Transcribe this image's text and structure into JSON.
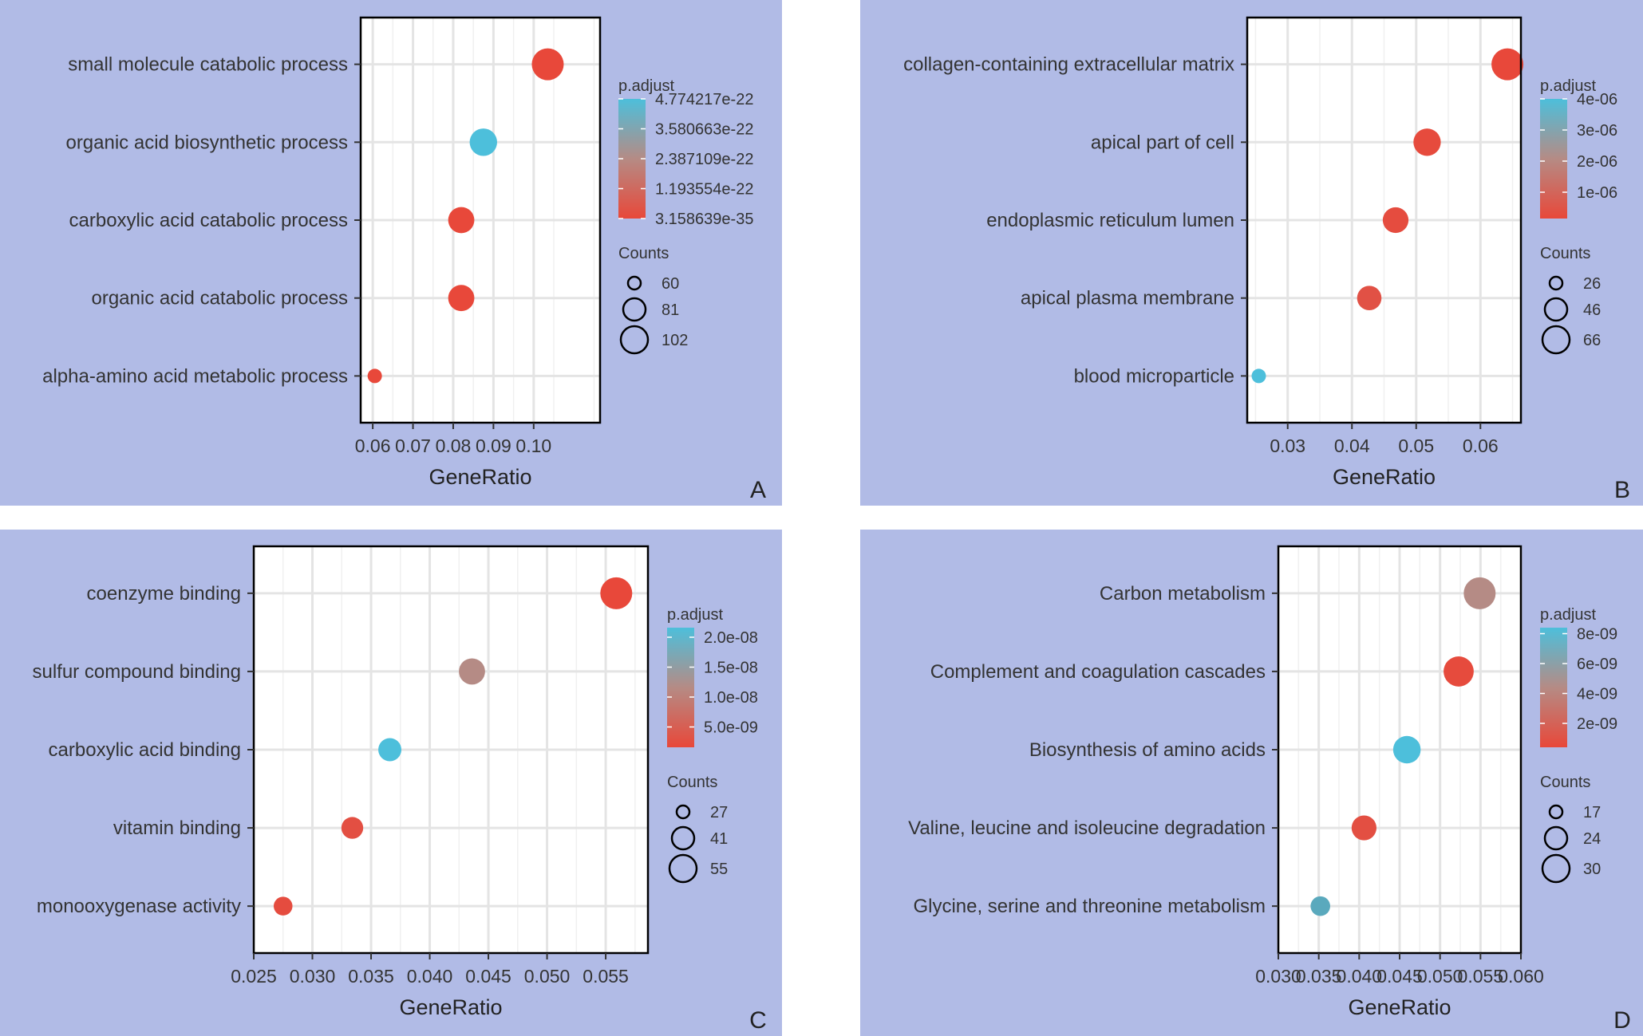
{
  "chart_data": [
    {
      "type": "scatter",
      "panel": "A",
      "xlabel": "GeneRatio",
      "xlim": [
        0.057,
        0.1165
      ],
      "xticks": [
        0.06,
        0.07,
        0.08,
        0.09,
        0.1
      ],
      "xtick_labels": [
        "0.06",
        "0.07",
        "0.08",
        "0.09",
        "0.10"
      ],
      "xgrid_minor": [
        0.065,
        0.075,
        0.085,
        0.095,
        0.105,
        0.115
      ],
      "grid": true,
      "color_low": "#e8483a",
      "color_high": "#4dbfdb",
      "color_legend": {
        "title": "p.adjust",
        "labels": [
          "4.774217e-22",
          "3.580663e-22",
          "2.387109e-22",
          "1.193554e-22",
          "3.158639e-35"
        ],
        "fractions": [
          1.0,
          0.75,
          0.5,
          0.25,
          0.0
        ]
      },
      "size_legend": {
        "title": "Counts",
        "values": [
          60,
          81,
          102
        ],
        "labels": [
          "60",
          "81",
          "102"
        ]
      },
      "count_range": [
        43,
        110
      ],
      "categories": [
        "small molecule catabolic process",
        "organic acid biosynthetic process",
        "carboxylic acid catabolic process",
        "organic acid catabolic process",
        "alpha-amino acid metabolic process"
      ],
      "x": [
        0.1035,
        0.0875,
        0.082,
        0.082,
        0.0605
      ],
      "counts": [
        110,
        93,
        88,
        88,
        43
      ],
      "color_fraction": [
        0.0,
        1.0,
        0.0,
        0.0,
        0.0
      ]
    },
    {
      "type": "scatter",
      "panel": "B",
      "xlabel": "GeneRatio",
      "xlim": [
        0.0237,
        0.0663
      ],
      "xticks": [
        0.03,
        0.04,
        0.05,
        0.06
      ],
      "xtick_labels": [
        "0.03",
        "0.04",
        "0.05",
        "0.06"
      ],
      "xgrid_minor": [
        0.025,
        0.035,
        0.045,
        0.055,
        0.065
      ],
      "grid": true,
      "color_low": "#e8483a",
      "color_high": "#4dbfdb",
      "color_legend": {
        "title": "p.adjust",
        "labels": [
          "4e-06",
          "3e-06",
          "2e-06",
          "1e-06"
        ],
        "fractions": [
          1.0,
          0.74,
          0.48,
          0.22
        ]
      },
      "size_legend": {
        "title": "Counts",
        "values": [
          26,
          46,
          66
        ],
        "labels": [
          "26",
          "46",
          "66"
        ]
      },
      "count_range": [
        16,
        70
      ],
      "categories": [
        "collagen-containing extracellular matrix",
        "apical part of cell",
        "endoplasmic reticulum lumen",
        "apical plasma membrane",
        "blood microparticle"
      ],
      "x": [
        0.0642,
        0.0517,
        0.0468,
        0.0427,
        0.0255
      ],
      "counts": [
        70,
        56,
        51,
        47,
        16
      ],
      "color_fraction": [
        0.0,
        0.02,
        0.03,
        0.07,
        1.0
      ]
    },
    {
      "type": "scatter",
      "panel": "C",
      "xlabel": "GeneRatio",
      "xlim": [
        0.025,
        0.0586
      ],
      "xticks": [
        0.025,
        0.03,
        0.035,
        0.04,
        0.045,
        0.05,
        0.055
      ],
      "xtick_labels": [
        "0.025",
        "0.030",
        "0.035",
        "0.040",
        "0.045",
        "0.050",
        "0.055"
      ],
      "xgrid_minor": [
        0.0275,
        0.0325,
        0.0375,
        0.0425,
        0.0475,
        0.0525,
        0.0575
      ],
      "grid": true,
      "color_low": "#e8483a",
      "color_high": "#4dbfdb",
      "color_legend": {
        "title": "p.adjust",
        "labels": [
          "2.0e-08",
          "1.5e-08",
          "1.0e-08",
          "5.0e-09"
        ],
        "fractions": [
          0.92,
          0.67,
          0.42,
          0.17
        ]
      },
      "size_legend": {
        "title": "Counts",
        "values": [
          27,
          41,
          55
        ],
        "labels": [
          "27",
          "41",
          "55"
        ]
      },
      "count_range": [
        20,
        60
      ],
      "categories": [
        "coenzyme binding",
        "sulfur compound binding",
        "carboxylic acid binding",
        "vitamin binding",
        "monooxygenase activity"
      ],
      "x": [
        0.0559,
        0.0436,
        0.0366,
        0.0334,
        0.0275
      ],
      "counts": [
        60,
        47,
        40,
        37,
        30
      ],
      "color_fraction": [
        0.0,
        0.5,
        1.0,
        0.05,
        0.03
      ]
    },
    {
      "type": "scatter",
      "panel": "D",
      "xlabel": "GeneRatio",
      "xlim": [
        0.03,
        0.06
      ],
      "xticks": [
        0.03,
        0.035,
        0.04,
        0.045,
        0.05,
        0.055,
        0.06
      ],
      "xtick_labels": [
        "0.030",
        "0.035",
        "0.040",
        "0.045",
        "0.050",
        "0.055",
        "0.060"
      ],
      "xgrid_minor": [
        0.0325,
        0.0375,
        0.0425,
        0.0475,
        0.0525,
        0.0575
      ],
      "grid": true,
      "color_low": "#e8483a",
      "color_high": "#4dbfdb",
      "color_legend": {
        "title": "p.adjust",
        "labels": [
          "8e-09",
          "6e-09",
          "4e-09",
          "2e-09"
        ],
        "fractions": [
          0.95,
          0.7,
          0.45,
          0.2
        ]
      },
      "size_legend": {
        "title": "Counts",
        "values": [
          17,
          24,
          30
        ],
        "labels": [
          "17",
          "24",
          "30"
        ]
      },
      "count_range": [
        12,
        32
      ],
      "categories": [
        "Carbon metabolism",
        "Complement and coagulation cascades",
        "Biosynthesis of amino acids",
        "Valine, leucine and isoleucine degradation",
        "Glycine, serine and threonine metabolism"
      ],
      "x": [
        0.0549,
        0.0523,
        0.0459,
        0.0406,
        0.0352
      ],
      "counts": [
        32,
        30,
        27,
        24,
        18
      ],
      "color_fraction": [
        0.5,
        0.02,
        1.0,
        0.05,
        0.85
      ]
    }
  ]
}
